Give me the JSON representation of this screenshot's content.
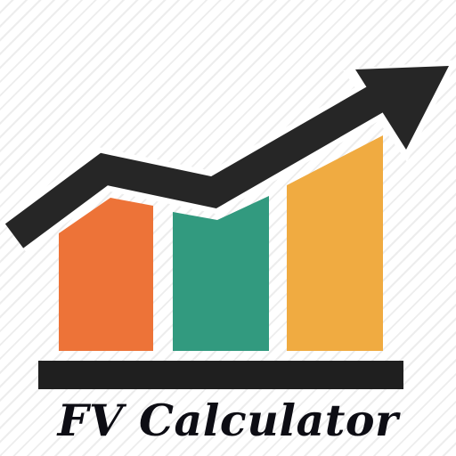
{
  "app": {
    "title": "FV Calculator"
  },
  "icon": {
    "name": "growth-chart-icon",
    "colors": {
      "bar_1": "#ed7338",
      "bar_2": "#329a7f",
      "bar_3": "#f0ab41",
      "arrow": "#262626",
      "baseline": "#1f1f1f",
      "text": "#0d0d14",
      "background_stripe": "#ededed"
    }
  }
}
